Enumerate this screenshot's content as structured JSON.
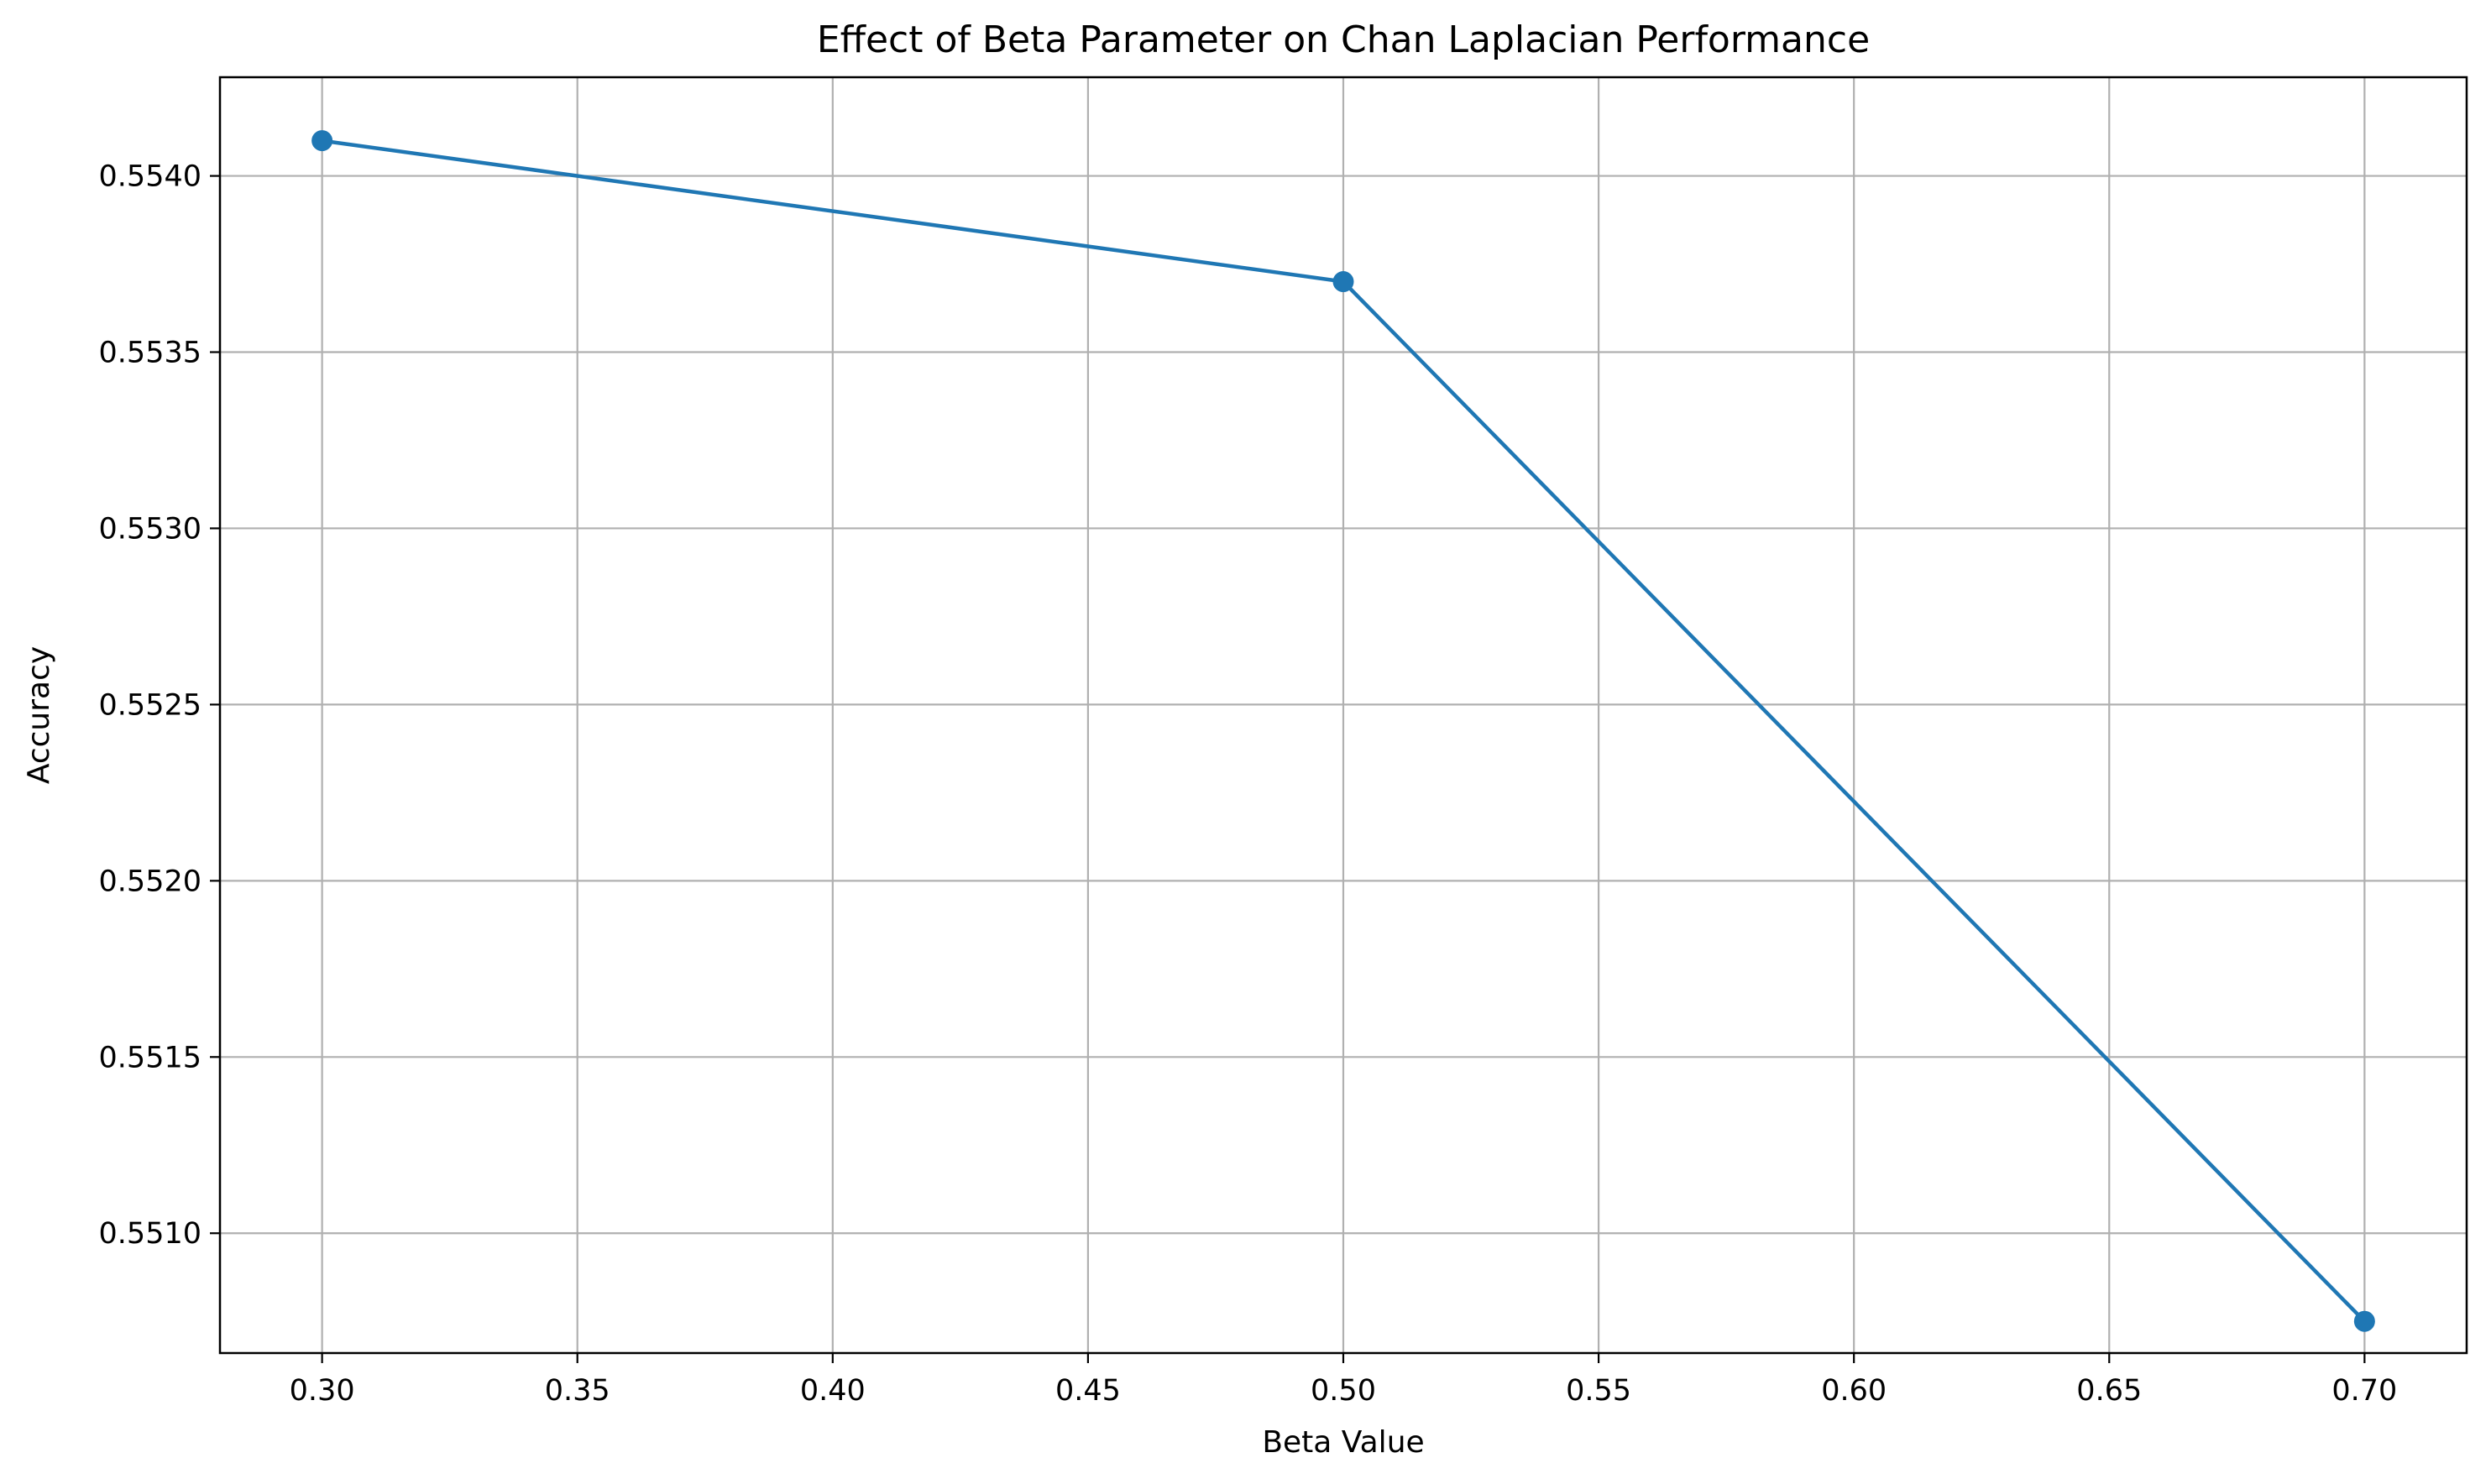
{
  "chart_data": {
    "type": "line",
    "title": "Effect of Beta Parameter on Chan Laplacian Performance",
    "xlabel": "Beta Value",
    "ylabel": "Accuracy",
    "xlim": [
      0.28,
      0.72
    ],
    "ylim": [
      0.55066,
      0.55428
    ],
    "x_ticks": [
      0.3,
      0.35,
      0.4,
      0.45,
      0.5,
      0.55,
      0.6,
      0.65,
      0.7
    ],
    "x_tick_labels": [
      "0.30",
      "0.35",
      "0.40",
      "0.45",
      "0.50",
      "0.55",
      "0.60",
      "0.65",
      "0.70"
    ],
    "y_ticks": [
      0.551,
      0.5515,
      0.552,
      0.5525,
      0.553,
      0.5535,
      0.554
    ],
    "y_tick_labels": [
      "0.5510",
      "0.5515",
      "0.5520",
      "0.5525",
      "0.5530",
      "0.5535",
      "0.5540"
    ],
    "grid": true,
    "series": [
      {
        "x": [
          0.3,
          0.5,
          0.7
        ],
        "y": [
          0.5541,
          0.5537,
          0.55075
        ],
        "color": "#1f77b4",
        "marker": "circle"
      }
    ]
  }
}
